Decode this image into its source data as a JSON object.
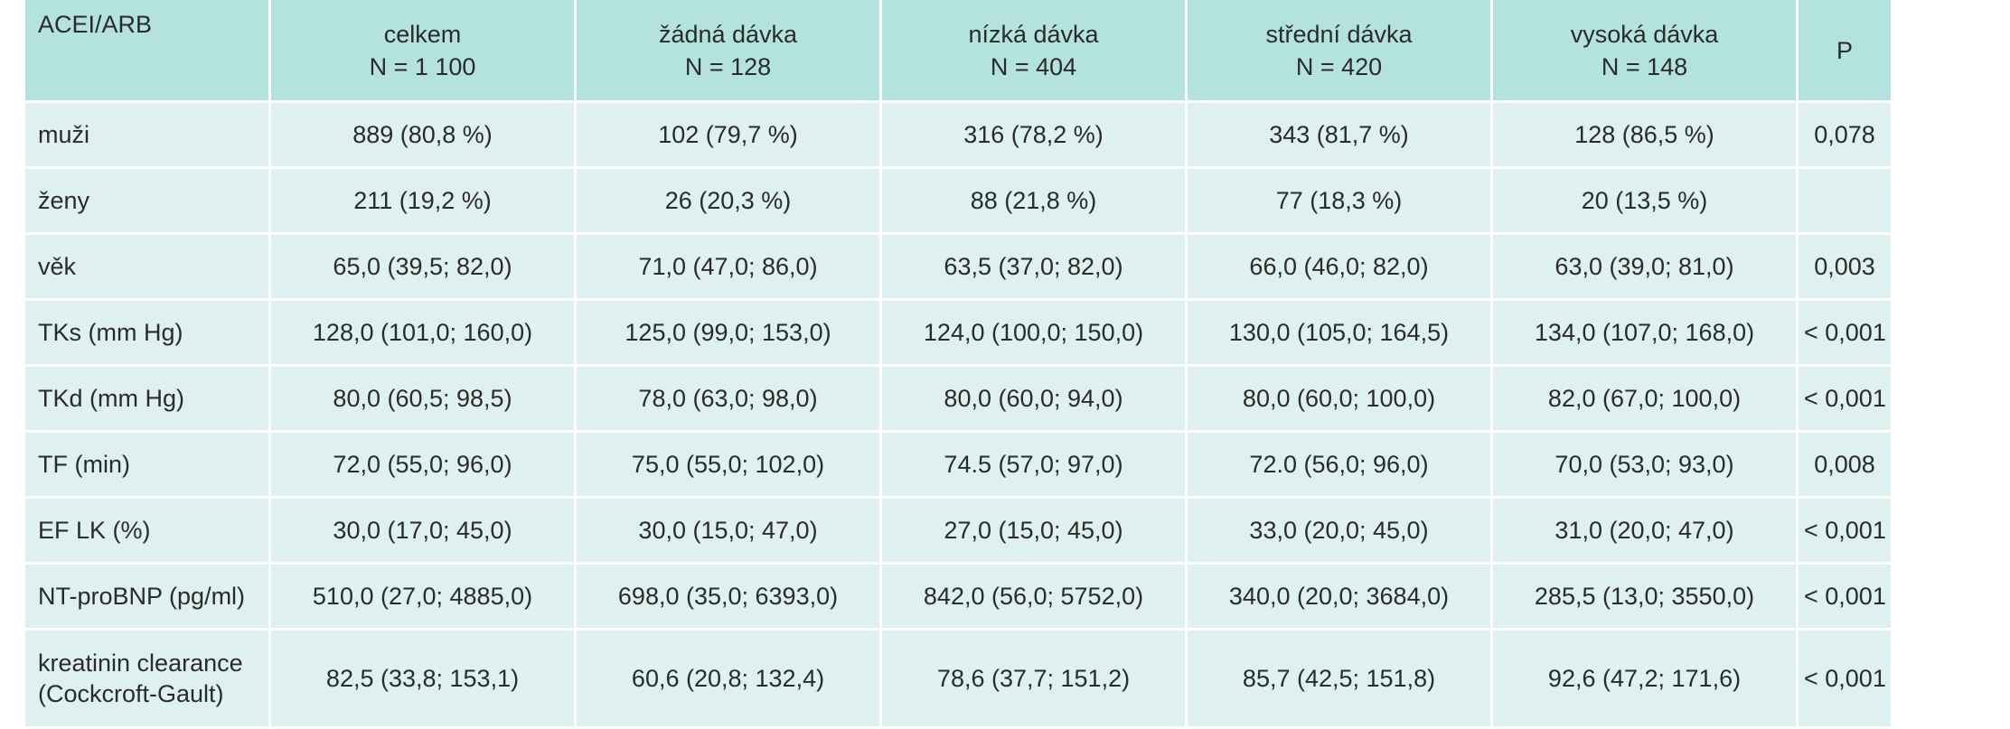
{
  "table": {
    "columns": [
      {
        "title": "ACEI/ARB",
        "subtitle": ""
      },
      {
        "title": "celkem",
        "subtitle": "N = 1 100"
      },
      {
        "title": "žádná dávka",
        "subtitle": "N = 128"
      },
      {
        "title": "nízká dávka",
        "subtitle": "N = 404"
      },
      {
        "title": "střední dávka",
        "subtitle": "N = 420"
      },
      {
        "title": "vysoká dávka",
        "subtitle": "N = 148"
      },
      {
        "title": "P",
        "subtitle": ""
      }
    ],
    "rows": [
      {
        "label": "muži",
        "cells": [
          "889 (80,8 %)",
          "102 (79,7 %)",
          "316 (78,2 %)",
          "343 (81,7 %)",
          "128 (86,5 %)",
          "0,078"
        ]
      },
      {
        "label": "ženy",
        "cells": [
          "211 (19,2 %)",
          "26 (20,3 %)",
          "88 (21,8 %)",
          "77 (18,3 %)",
          "20 (13,5 %)",
          ""
        ]
      },
      {
        "label": "věk",
        "cells": [
          "65,0 (39,5; 82,0)",
          "71,0 (47,0; 86,0)",
          "63,5 (37,0; 82,0)",
          "66,0 (46,0; 82,0)",
          "63,0 (39,0; 81,0)",
          "0,003"
        ]
      },
      {
        "label": "TKs (mm Hg)",
        "cells": [
          "128,0 (101,0; 160,0)",
          "125,0 (99,0; 153,0)",
          "124,0 (100,0; 150,0)",
          "130,0 (105,0; 164,5)",
          "134,0 (107,0; 168,0)",
          "< 0,001"
        ]
      },
      {
        "label": "TKd (mm Hg)",
        "cells": [
          "80,0 (60,5; 98,5)",
          "78,0 (63,0; 98,0)",
          "80,0 (60,0; 94,0)",
          "80,0 (60,0; 100,0)",
          "82,0 (67,0; 100,0)",
          "< 0,001"
        ]
      },
      {
        "label": "TF (min)",
        "cells": [
          "72,0 (55,0; 96,0)",
          "75,0 (55,0; 102,0)",
          "74.5 (57,0; 97,0)",
          "72.0 (56,0; 96,0)",
          "70,0 (53,0; 93,0)",
          "0,008"
        ]
      },
      {
        "label": "EF LK (%)",
        "cells": [
          "30,0 (17,0; 45,0)",
          "30,0 (15,0; 47,0)",
          "27,0 (15,0; 45,0)",
          "33,0 (20,0; 45,0)",
          "31,0 (20,0; 47,0)",
          "< 0,001"
        ]
      },
      {
        "label": "NT-proBNP (pg/ml)",
        "cells": [
          "510,0 (27,0; 4885,0)",
          "698,0 (35,0; 6393,0)",
          "842,0 (56,0; 5752,0)",
          "340,0 (20,0; 3684,0)",
          "285,5 (13,0; 3550,0)",
          "< 0,001"
        ]
      },
      {
        "label": "kreatinin clearance (Cockcroft-Gault)",
        "cells": [
          "82,5 (33,8; 153,1)",
          "60,6 (20,8; 132,4)",
          "78,6 (37,7; 151,2)",
          "85,7 (42,5; 151,8)",
          "92,6 (47,2; 171,6)",
          "< 0,001"
        ]
      }
    ]
  },
  "colors": {
    "header_bg": "#b4e2df",
    "row_bg": "#def1ef",
    "text": "#2b2b2b"
  }
}
